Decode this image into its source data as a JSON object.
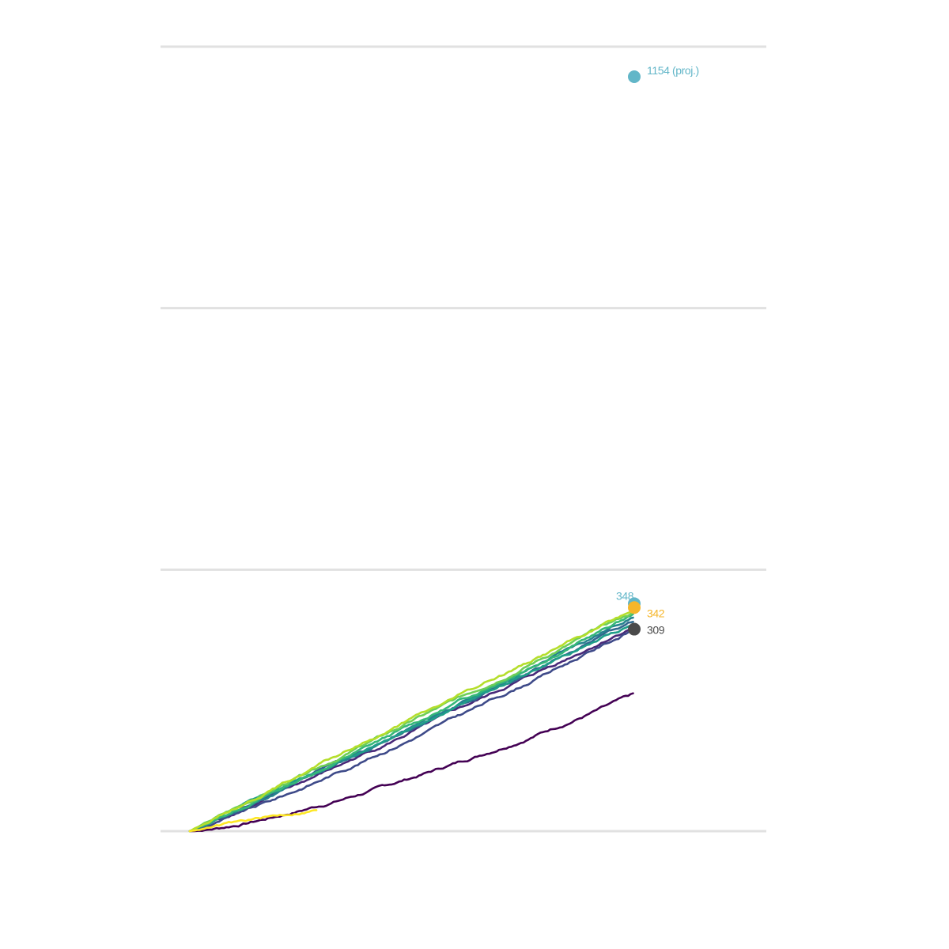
{
  "chart_data": {
    "type": "line",
    "title": "",
    "xlabel": "",
    "ylabel": "",
    "xlim": [
      0,
      365
    ],
    "ylim": [
      0,
      1200
    ],
    "grid": true,
    "legend": "none",
    "series": [
      {
        "color": "#440154",
        "end_day": 365,
        "end_value": 208,
        "curve": 1.35
      },
      {
        "color": "#482878",
        "end_day": 365,
        "end_value": 314,
        "curve": 1.05
      },
      {
        "color": "#3e4a89",
        "end_day": 365,
        "end_value": 309,
        "curve": 1.12
      },
      {
        "color": "#31688e",
        "end_day": 365,
        "end_value": 322,
        "curve": 1.02
      },
      {
        "color": "#26828e",
        "end_day": 365,
        "end_value": 330,
        "curve": 1.06
      },
      {
        "color": "#1f9e89",
        "end_day": 365,
        "end_value": 318,
        "curve": 1.0
      },
      {
        "color": "#35b779",
        "end_day": 365,
        "end_value": 332,
        "curve": 1.03
      },
      {
        "color": "#6ece58",
        "end_day": 365,
        "end_value": 335,
        "curve": 1.0
      },
      {
        "color": "#b5de2b",
        "end_day": 365,
        "end_value": 338,
        "curve": 0.98
      },
      {
        "color": "#fde725",
        "end_day": 105,
        "end_value": 115,
        "curve": 0.96
      }
    ],
    "annotations": [
      {
        "label": "1154 (proj.)",
        "x": 365,
        "y": 1154,
        "color": "#62b6c8"
      },
      {
        "label": "348",
        "x": 365,
        "y": 348,
        "color": "#62b6c8"
      },
      {
        "label": "342",
        "x": 365,
        "y": 342,
        "color": "#f5b62a"
      },
      {
        "label": "309",
        "x": 365,
        "y": 309,
        "color": "#4a4a4a"
      }
    ]
  }
}
